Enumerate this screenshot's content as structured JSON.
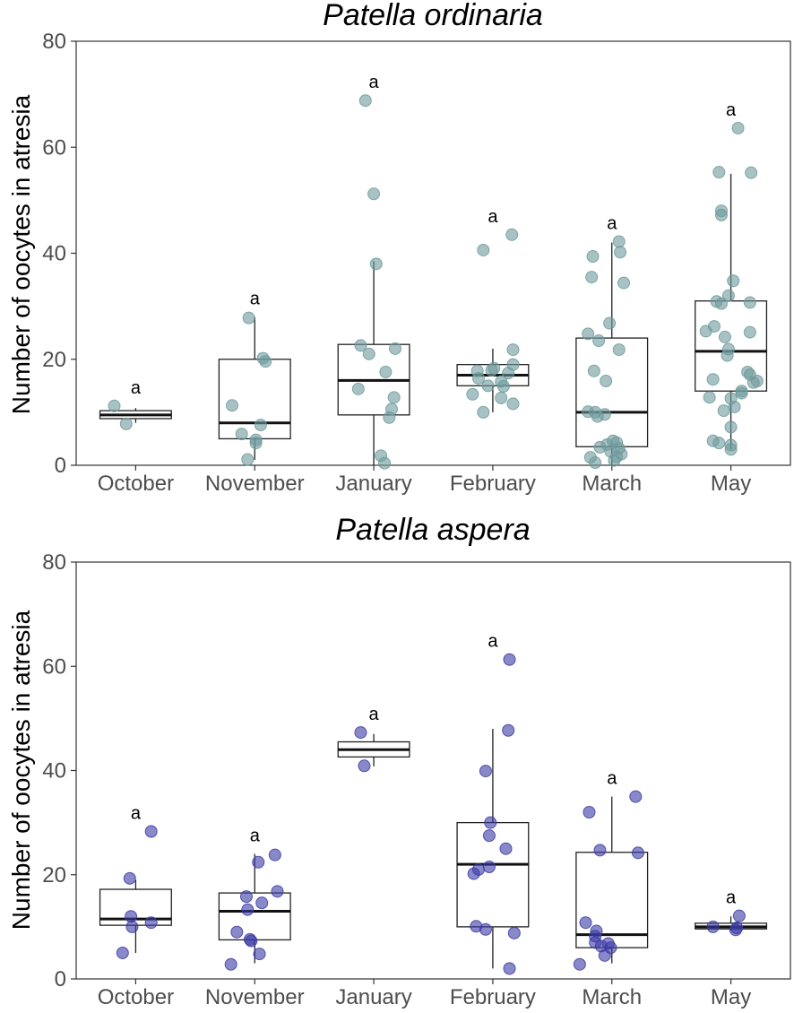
{
  "chart_data": [
    {
      "type": "box",
      "title": "Patella ordinaria",
      "xlabel": "",
      "ylabel": "Number of oocytes in atresia",
      "ylim": [
        0,
        80
      ],
      "yticks": [
        0,
        20,
        40,
        60,
        80
      ],
      "point_color": "#6e9a9c",
      "categories": [
        "October",
        "November",
        "January",
        "February",
        "March",
        "May"
      ],
      "letters": [
        "a",
        "a",
        "a",
        "a",
        "a",
        "a"
      ],
      "boxes": [
        {
          "q1": 8.8,
          "median": 9.5,
          "q3": 10.3,
          "whisker_low": 8.0,
          "whisker_high": 10.8
        },
        {
          "q1": 5.0,
          "median": 8.0,
          "q3": 20.0,
          "whisker_low": 1.0,
          "whisker_high": 28.0
        },
        {
          "q1": 9.5,
          "median": 16.0,
          "q3": 22.8,
          "whisker_low": 0.0,
          "whisker_high": 38.5
        },
        {
          "q1": 15.0,
          "median": 17.0,
          "q3": 19.0,
          "whisker_low": 10.0,
          "whisker_high": 22.0
        },
        {
          "q1": 3.5,
          "median": 10.0,
          "q3": 24.0,
          "whisker_low": 0.0,
          "whisker_high": 42.0
        },
        {
          "q1": 14.0,
          "median": 21.5,
          "q3": 31.0,
          "whisker_low": 3.0,
          "whisker_high": 55.0
        }
      ],
      "points": [
        [
          {
            "dx": -0.18,
            "y": 11.2
          },
          {
            "dx": -0.08,
            "y": 7.8
          }
        ],
        [
          {
            "dx": -0.05,
            "y": 27.8
          },
          {
            "dx": 0.07,
            "y": 20.2
          },
          {
            "dx": 0.09,
            "y": 19.6
          },
          {
            "dx": -0.19,
            "y": 11.3
          },
          {
            "dx": 0.05,
            "y": 7.6
          },
          {
            "dx": -0.11,
            "y": 5.9
          },
          {
            "dx": 0.01,
            "y": 4.8
          },
          {
            "dx": 0.01,
            "y": 4.2
          },
          {
            "dx": -0.06,
            "y": 1.1
          }
        ],
        [
          {
            "dx": -0.07,
            "y": 68.8
          },
          {
            "dx": 0.0,
            "y": 51.2
          },
          {
            "dx": 0.02,
            "y": 38.0
          },
          {
            "dx": -0.11,
            "y": 22.6
          },
          {
            "dx": 0.18,
            "y": 22.0
          },
          {
            "dx": -0.04,
            "y": 21.0
          },
          {
            "dx": 0.1,
            "y": 17.6
          },
          {
            "dx": -0.13,
            "y": 14.4
          },
          {
            "dx": 0.17,
            "y": 12.8
          },
          {
            "dx": 0.15,
            "y": 10.6
          },
          {
            "dx": 0.13,
            "y": 9.0
          },
          {
            "dx": 0.06,
            "y": 1.8
          },
          {
            "dx": 0.09,
            "y": 0.4
          }
        ],
        [
          {
            "dx": 0.16,
            "y": 43.5
          },
          {
            "dx": -0.08,
            "y": 40.6
          },
          {
            "dx": 0.17,
            "y": 21.8
          },
          {
            "dx": 0.01,
            "y": 18.3
          },
          {
            "dx": 0.17,
            "y": 19.0
          },
          {
            "dx": -0.13,
            "y": 17.8
          },
          {
            "dx": 0.13,
            "y": 17.4
          },
          {
            "dx": -0.01,
            "y": 17.9
          },
          {
            "dx": -0.12,
            "y": 16.4
          },
          {
            "dx": 0.07,
            "y": 15.8
          },
          {
            "dx": -0.04,
            "y": 15.0
          },
          {
            "dx": 0.09,
            "y": 14.9
          },
          {
            "dx": -0.17,
            "y": 13.4
          },
          {
            "dx": 0.07,
            "y": 12.7
          },
          {
            "dx": 0.17,
            "y": 11.6
          },
          {
            "dx": -0.08,
            "y": 10.0
          }
        ],
        [
          {
            "dx": 0.06,
            "y": 42.2
          },
          {
            "dx": 0.07,
            "y": 40.2
          },
          {
            "dx": -0.16,
            "y": 39.4
          },
          {
            "dx": -0.17,
            "y": 35.5
          },
          {
            "dx": 0.1,
            "y": 34.4
          },
          {
            "dx": -0.02,
            "y": 26.8
          },
          {
            "dx": -0.2,
            "y": 24.8
          },
          {
            "dx": -0.11,
            "y": 23.5
          },
          {
            "dx": 0.06,
            "y": 21.8
          },
          {
            "dx": -0.15,
            "y": 17.8
          },
          {
            "dx": -0.05,
            "y": 15.9
          },
          {
            "dx": -0.2,
            "y": 10.1
          },
          {
            "dx": -0.14,
            "y": 10.0
          },
          {
            "dx": -0.06,
            "y": 9.6
          },
          {
            "dx": -0.12,
            "y": 9.2
          },
          {
            "dx": 0.01,
            "y": 4.6
          },
          {
            "dx": 0.04,
            "y": 4.3
          },
          {
            "dx": -0.04,
            "y": 3.9
          },
          {
            "dx": -0.1,
            "y": 3.4
          },
          {
            "dx": 0.06,
            "y": 3.2
          },
          {
            "dx": -0.01,
            "y": 2.6
          },
          {
            "dx": 0.08,
            "y": 2.1
          },
          {
            "dx": 0.04,
            "y": 1.6
          },
          {
            "dx": -0.18,
            "y": 1.5
          },
          {
            "dx": 0.02,
            "y": 0.9
          },
          {
            "dx": -0.14,
            "y": 0.5
          }
        ],
        [
          {
            "dx": 0.06,
            "y": 63.6
          },
          {
            "dx": -0.1,
            "y": 55.3
          },
          {
            "dx": 0.17,
            "y": 55.2
          },
          {
            "dx": -0.08,
            "y": 48.0
          },
          {
            "dx": -0.08,
            "y": 47.2
          },
          {
            "dx": 0.02,
            "y": 34.8
          },
          {
            "dx": -0.02,
            "y": 32.0
          },
          {
            "dx": 0.16,
            "y": 30.7
          },
          {
            "dx": -0.08,
            "y": 30.5
          },
          {
            "dx": -0.12,
            "y": 30.9
          },
          {
            "dx": -0.14,
            "y": 26.2
          },
          {
            "dx": -0.21,
            "y": 25.3
          },
          {
            "dx": 0.16,
            "y": 25.1
          },
          {
            "dx": -0.05,
            "y": 24.2
          },
          {
            "dx": -0.02,
            "y": 21.9
          },
          {
            "dx": -0.03,
            "y": 20.7
          },
          {
            "dx": 0.14,
            "y": 17.6
          },
          {
            "dx": 0.16,
            "y": 17.1
          },
          {
            "dx": 0.19,
            "y": 15.6
          },
          {
            "dx": 0.22,
            "y": 15.9
          },
          {
            "dx": -0.15,
            "y": 16.2
          },
          {
            "dx": 0.09,
            "y": 14.0
          },
          {
            "dx": 0.09,
            "y": 13.6
          },
          {
            "dx": -0.18,
            "y": 12.8
          },
          {
            "dx": 0.0,
            "y": 12.6
          },
          {
            "dx": 0.03,
            "y": 11.0
          },
          {
            "dx": -0.06,
            "y": 10.3
          },
          {
            "dx": 0.0,
            "y": 7.2
          },
          {
            "dx": -0.15,
            "y": 4.6
          },
          {
            "dx": -0.1,
            "y": 4.2
          },
          {
            "dx": 0.0,
            "y": 3.8
          },
          {
            "dx": 0.0,
            "y": 3.0
          }
        ]
      ]
    },
    {
      "type": "box",
      "title": "Patella aspera",
      "xlabel": "",
      "ylabel": "Number of oocytes in atresia",
      "ylim": [
        0,
        80
      ],
      "yticks": [
        0,
        20,
        40,
        60,
        80
      ],
      "point_color": "#3b3ba6",
      "categories": [
        "October",
        "November",
        "January",
        "February",
        "March",
        "May"
      ],
      "letters": [
        "a",
        "a",
        "a",
        "a",
        "a",
        "a"
      ],
      "boxes": [
        {
          "q1": 10.3,
          "median": 11.5,
          "q3": 17.2,
          "whisker_low": 5.0,
          "whisker_high": 19.0
        },
        {
          "q1": 7.5,
          "median": 13.0,
          "q3": 16.5,
          "whisker_low": 3.0,
          "whisker_high": 24.0
        },
        {
          "q1": 42.6,
          "median": 44.0,
          "q3": 45.5,
          "whisker_low": 40.8,
          "whisker_high": 47.0
        },
        {
          "q1": 10.0,
          "median": 22.0,
          "q3": 30.0,
          "whisker_low": 2.0,
          "whisker_high": 48.0
        },
        {
          "q1": 6.0,
          "median": 8.5,
          "q3": 24.3,
          "whisker_low": 3.0,
          "whisker_high": 35.0
        },
        {
          "q1": 9.6,
          "median": 10.0,
          "q3": 10.7,
          "whisker_low": 9.3,
          "whisker_high": 12.0
        }
      ],
      "points": [
        [
          {
            "dx": 0.13,
            "y": 28.3
          },
          {
            "dx": -0.05,
            "y": 19.3
          },
          {
            "dx": -0.04,
            "y": 12.0
          },
          {
            "dx": 0.13,
            "y": 10.8
          },
          {
            "dx": -0.03,
            "y": 10.0
          },
          {
            "dx": -0.11,
            "y": 5.0
          }
        ],
        [
          {
            "dx": 0.17,
            "y": 23.8
          },
          {
            "dx": 0.03,
            "y": 22.4
          },
          {
            "dx": 0.19,
            "y": 16.8
          },
          {
            "dx": -0.07,
            "y": 15.8
          },
          {
            "dx": 0.06,
            "y": 14.6
          },
          {
            "dx": -0.06,
            "y": 13.3
          },
          {
            "dx": -0.15,
            "y": 9.0
          },
          {
            "dx": -0.04,
            "y": 7.6
          },
          {
            "dx": -0.03,
            "y": 7.3
          },
          {
            "dx": 0.04,
            "y": 4.8
          },
          {
            "dx": -0.2,
            "y": 2.8
          }
        ],
        [
          {
            "dx": -0.11,
            "y": 47.3
          },
          {
            "dx": -0.08,
            "y": 40.9
          }
        ],
        [
          {
            "dx": 0.14,
            "y": 61.3
          },
          {
            "dx": 0.13,
            "y": 47.7
          },
          {
            "dx": -0.06,
            "y": 39.9
          },
          {
            "dx": -0.02,
            "y": 30.0
          },
          {
            "dx": -0.03,
            "y": 27.5
          },
          {
            "dx": 0.11,
            "y": 25.0
          },
          {
            "dx": -0.03,
            "y": 21.5
          },
          {
            "dx": -0.12,
            "y": 21.0
          },
          {
            "dx": -0.16,
            "y": 20.2
          },
          {
            "dx": -0.14,
            "y": 10.1
          },
          {
            "dx": -0.06,
            "y": 9.5
          },
          {
            "dx": 0.18,
            "y": 8.8
          },
          {
            "dx": 0.14,
            "y": 2.0
          }
        ],
        [
          {
            "dx": 0.2,
            "y": 35.0
          },
          {
            "dx": -0.19,
            "y": 32.0
          },
          {
            "dx": -0.1,
            "y": 24.7
          },
          {
            "dx": 0.22,
            "y": 24.2
          },
          {
            "dx": -0.22,
            "y": 10.8
          },
          {
            "dx": -0.13,
            "y": 9.2
          },
          {
            "dx": -0.14,
            "y": 8.2
          },
          {
            "dx": -0.14,
            "y": 7.0
          },
          {
            "dx": -0.03,
            "y": 6.8
          },
          {
            "dx": -0.09,
            "y": 6.3
          },
          {
            "dx": -0.01,
            "y": 6.0
          },
          {
            "dx": -0.06,
            "y": 4.5
          },
          {
            "dx": -0.27,
            "y": 2.8
          }
        ],
        [
          {
            "dx": 0.07,
            "y": 12.1
          },
          {
            "dx": -0.15,
            "y": 10.0
          },
          {
            "dx": 0.05,
            "y": 9.8
          },
          {
            "dx": 0.04,
            "y": 9.4
          }
        ]
      ]
    }
  ]
}
